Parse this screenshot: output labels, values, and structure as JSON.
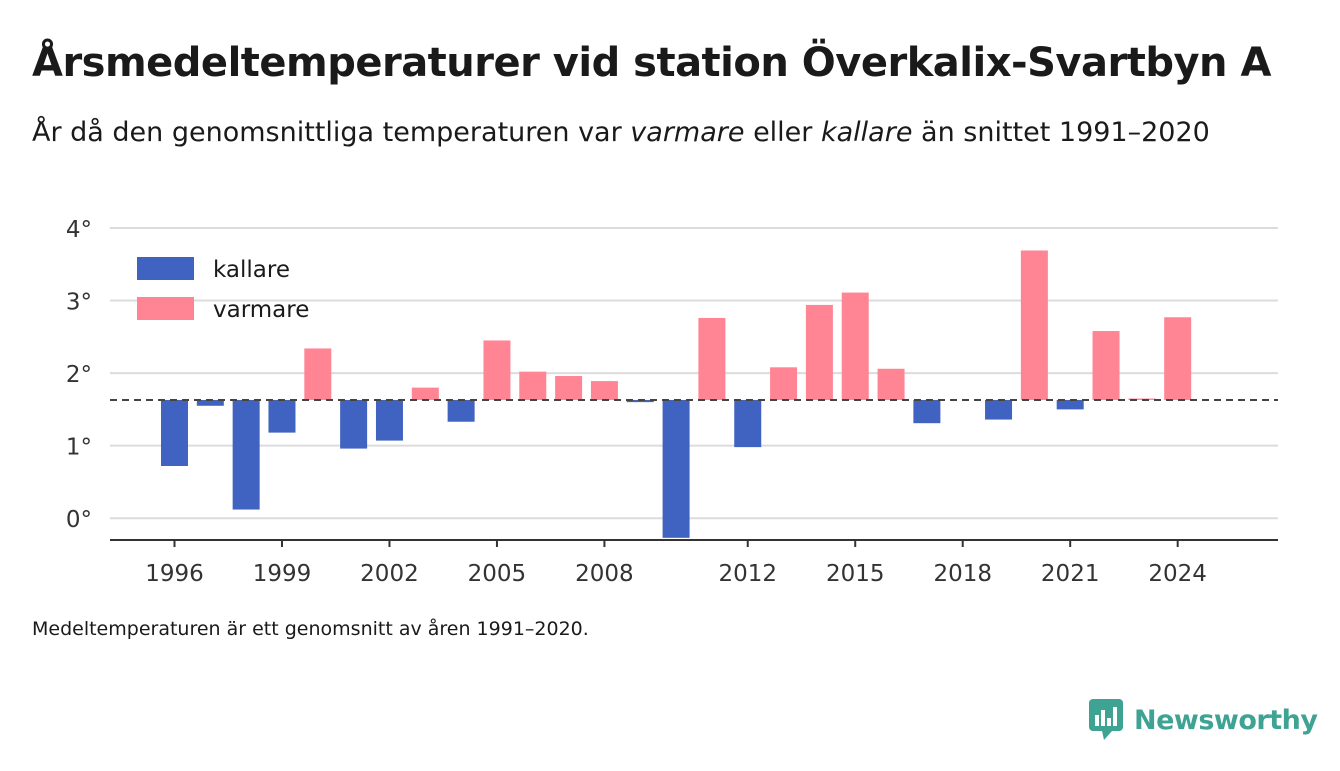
{
  "title": "Årsmedeltemperaturer vid station Överkalix-Svartbyn A",
  "subtitle": {
    "part1": "År då den genomsnittliga temperaturen var ",
    "warm_word": "varmare",
    "part2": " eller ",
    "cold_word": "kallare",
    "part3": " än snittet 1991–2020"
  },
  "footnote": "Medeltemperaturen är ett genomsnitt av åren 1991–2020.",
  "brand": "Newsworthy",
  "colors": {
    "cold": "#4062c0",
    "warm": "#ff8595",
    "grid": "#dcdcdc",
    "axis": "#333333",
    "baseline": "#444444"
  },
  "chart_data": {
    "type": "bar",
    "baseline": 1.63,
    "ylim": [
      -0.3,
      4.0
    ],
    "xlim": [
      1994.2,
      2026.8
    ],
    "yticks": [
      0,
      1,
      2,
      3,
      4
    ],
    "ytick_labels": [
      "0°",
      "1°",
      "2°",
      "3°",
      "4°"
    ],
    "xticks": [
      1996,
      1999,
      2002,
      2005,
      2008,
      2012,
      2015,
      2018,
      2021,
      2024
    ],
    "legend": {
      "position": "top-left",
      "items": [
        {
          "key": "cold",
          "label": "kallare"
        },
        {
          "key": "warm",
          "label": "varmare"
        }
      ]
    },
    "series": [
      {
        "x": 1996,
        "value": 0.72
      },
      {
        "x": 1997,
        "value": 1.55
      },
      {
        "x": 1998,
        "value": 0.12
      },
      {
        "x": 1999,
        "value": 1.18
      },
      {
        "x": 2000,
        "value": 2.34
      },
      {
        "x": 2001,
        "value": 0.96
      },
      {
        "x": 2002,
        "value": 1.07
      },
      {
        "x": 2003,
        "value": 1.8
      },
      {
        "x": 2004,
        "value": 1.33
      },
      {
        "x": 2005,
        "value": 2.45
      },
      {
        "x": 2006,
        "value": 2.02
      },
      {
        "x": 2007,
        "value": 1.96
      },
      {
        "x": 2008,
        "value": 1.89
      },
      {
        "x": 2009,
        "value": 1.6
      },
      {
        "x": 2010,
        "value": -0.27
      },
      {
        "x": 2011,
        "value": 2.76
      },
      {
        "x": 2012,
        "value": 0.98
      },
      {
        "x": 2013,
        "value": 2.08
      },
      {
        "x": 2014,
        "value": 2.94
      },
      {
        "x": 2015,
        "value": 3.11
      },
      {
        "x": 2016,
        "value": 2.06
      },
      {
        "x": 2017,
        "value": 1.31
      },
      {
        "x": 2019,
        "value": 1.36
      },
      {
        "x": 2020,
        "value": 3.69
      },
      {
        "x": 2021,
        "value": 1.5
      },
      {
        "x": 2022,
        "value": 2.58
      },
      {
        "x": 2023,
        "value": 1.65
      },
      {
        "x": 2024,
        "value": 2.77
      }
    ]
  }
}
